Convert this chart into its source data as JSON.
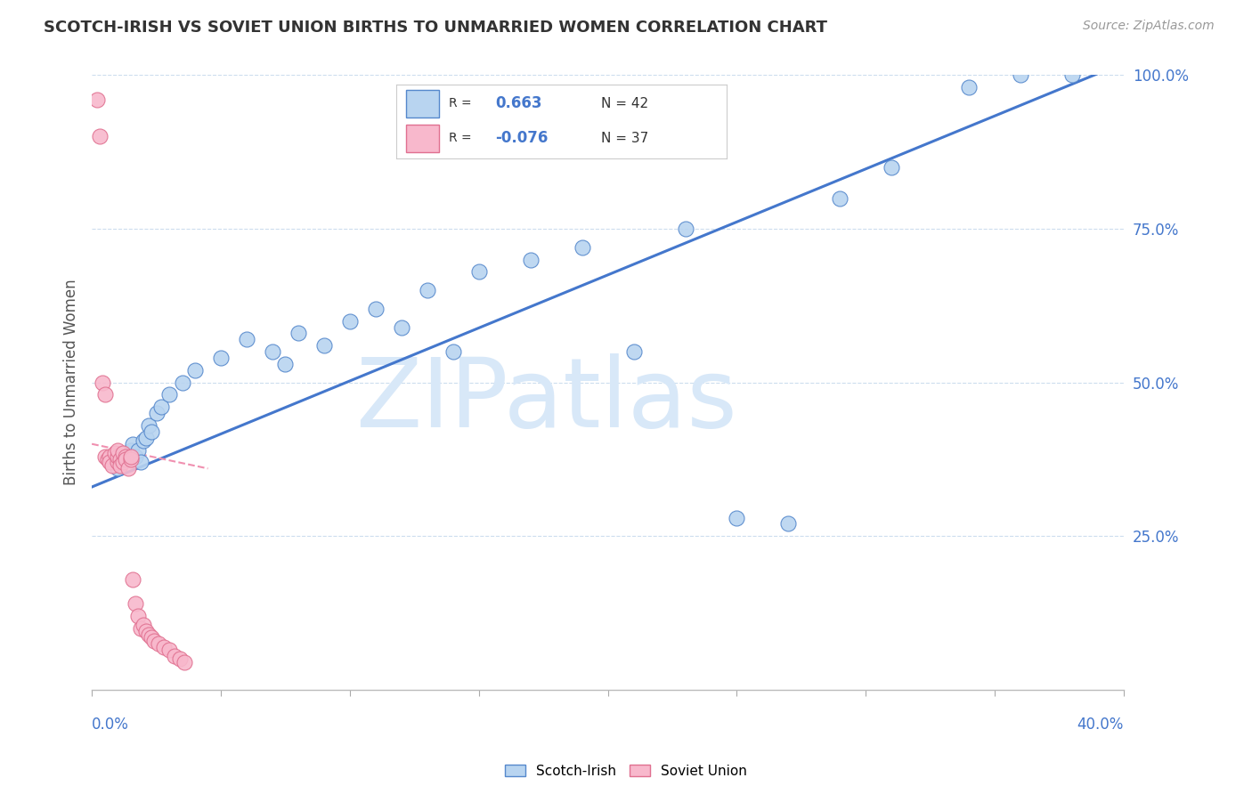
{
  "title": "SCOTCH-IRISH VS SOVIET UNION BIRTHS TO UNMARRIED WOMEN CORRELATION CHART",
  "source": "Source: ZipAtlas.com",
  "ylabel": "Births to Unmarried Women",
  "xlim": [
    0.0,
    40.0
  ],
  "ylim": [
    0.0,
    100.0
  ],
  "r_blue": 0.663,
  "n_blue": 42,
  "r_pink": -0.076,
  "n_pink": 37,
  "blue_color": "#b8d4f0",
  "blue_edge": "#5588cc",
  "pink_color": "#f8b8cc",
  "pink_edge": "#e07090",
  "line_blue_color": "#4477cc",
  "line_pink_color": "#f090b0",
  "watermark": "ZIPatlas",
  "watermark_color": "#d8e8f8",
  "legend_blue_label": "Scotch-Irish",
  "legend_pink_label": "Soviet Union",
  "blue_x": [
    1.0,
    1.1,
    1.2,
    1.3,
    1.4,
    1.5,
    1.6,
    1.7,
    1.8,
    1.9,
    2.0,
    2.1,
    2.2,
    2.3,
    2.5,
    2.7,
    3.0,
    3.5,
    4.0,
    5.0,
    6.0,
    7.0,
    7.5,
    8.0,
    9.0,
    10.0,
    11.0,
    12.0,
    13.0,
    14.0,
    15.0,
    17.0,
    19.0,
    21.0,
    23.0,
    25.0,
    27.0,
    29.0,
    31.0,
    34.0,
    36.0,
    38.0
  ],
  "blue_y": [
    36.0,
    37.0,
    38.0,
    37.5,
    38.5,
    39.0,
    40.0,
    38.0,
    39.0,
    37.0,
    40.5,
    41.0,
    43.0,
    42.0,
    45.0,
    46.0,
    48.0,
    50.0,
    52.0,
    54.0,
    57.0,
    55.0,
    53.0,
    58.0,
    56.0,
    60.0,
    62.0,
    59.0,
    65.0,
    55.0,
    68.0,
    70.0,
    72.0,
    55.0,
    75.0,
    28.0,
    27.0,
    80.0,
    85.0,
    98.0,
    100.0,
    100.0
  ],
  "pink_x": [
    0.2,
    0.3,
    0.4,
    0.5,
    0.5,
    0.6,
    0.7,
    0.7,
    0.8,
    0.9,
    1.0,
    1.0,
    1.0,
    1.1,
    1.1,
    1.2,
    1.2,
    1.3,
    1.3,
    1.4,
    1.5,
    1.5,
    1.6,
    1.7,
    1.8,
    1.9,
    2.0,
    2.1,
    2.2,
    2.3,
    2.4,
    2.6,
    2.8,
    3.0,
    3.2,
    3.4,
    3.6
  ],
  "pink_y": [
    96.0,
    90.0,
    50.0,
    48.0,
    38.0,
    37.5,
    38.0,
    37.0,
    36.5,
    38.5,
    37.0,
    38.0,
    39.0,
    37.5,
    36.5,
    37.0,
    38.5,
    38.0,
    37.5,
    36.0,
    37.5,
    38.0,
    18.0,
    14.0,
    12.0,
    10.0,
    10.5,
    9.5,
    9.0,
    8.5,
    8.0,
    7.5,
    7.0,
    6.5,
    5.5,
    5.0,
    4.5
  ],
  "blue_line_x0": 0.0,
  "blue_line_y0": 33.0,
  "blue_line_x1": 40.0,
  "blue_line_y1": 102.0,
  "pink_line_x0": 0.0,
  "pink_line_y0": 40.0,
  "pink_line_x1": 4.5,
  "pink_line_y1": 36.0
}
